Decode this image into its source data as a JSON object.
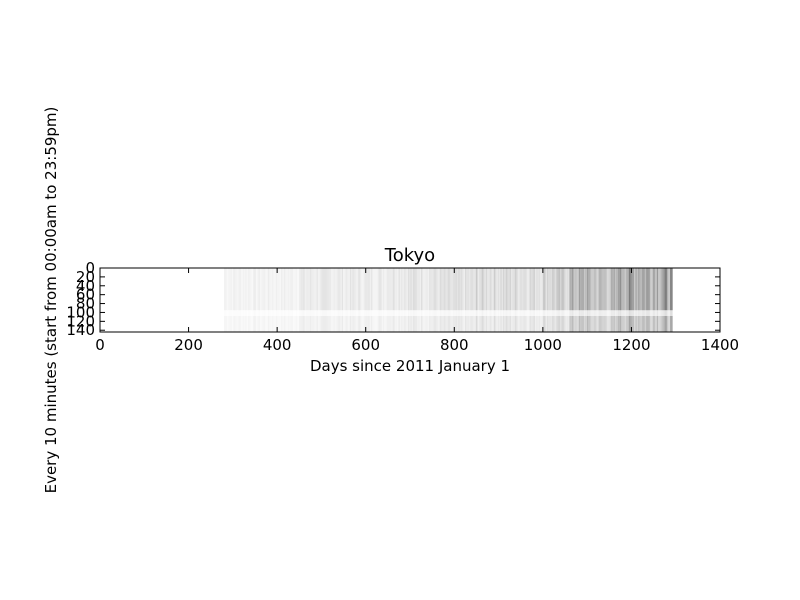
{
  "chart_data": {
    "type": "heatmap",
    "title": "Tokyo",
    "xlabel": "Days since 2011 January 1",
    "ylabel": "Every 10 minutes (start from 00:00am to 23:59pm)",
    "xlim": [
      0,
      1400
    ],
    "ylim": [
      0,
      144
    ],
    "y_inverted": true,
    "x_ticks": [
      0,
      200,
      400,
      600,
      800,
      1000,
      1200,
      1400
    ],
    "y_ticks": [
      0,
      20,
      40,
      60,
      80,
      100,
      120,
      140
    ],
    "colormap": "grayscale (white = low, black = high)",
    "data_extent_days": [
      0,
      1293
    ],
    "bands": [
      {
        "days": [
          0,
          280
        ],
        "intensity": 0.0
      },
      {
        "days": [
          280,
          450
        ],
        "intensity": 0.06
      },
      {
        "days": [
          450,
          650
        ],
        "intensity": 0.09
      },
      {
        "days": [
          650,
          850
        ],
        "intensity": 0.12
      },
      {
        "days": [
          850,
          1000
        ],
        "intensity": 0.16
      },
      {
        "days": [
          1000,
          1060
        ],
        "intensity": 0.2
      },
      {
        "days": [
          1060,
          1100
        ],
        "intensity": 0.32
      },
      {
        "days": [
          1100,
          1170
        ],
        "intensity": 0.28
      },
      {
        "days": [
          1170,
          1293
        ],
        "intensity": 0.42
      }
    ],
    "grid": false,
    "legend": "none"
  }
}
